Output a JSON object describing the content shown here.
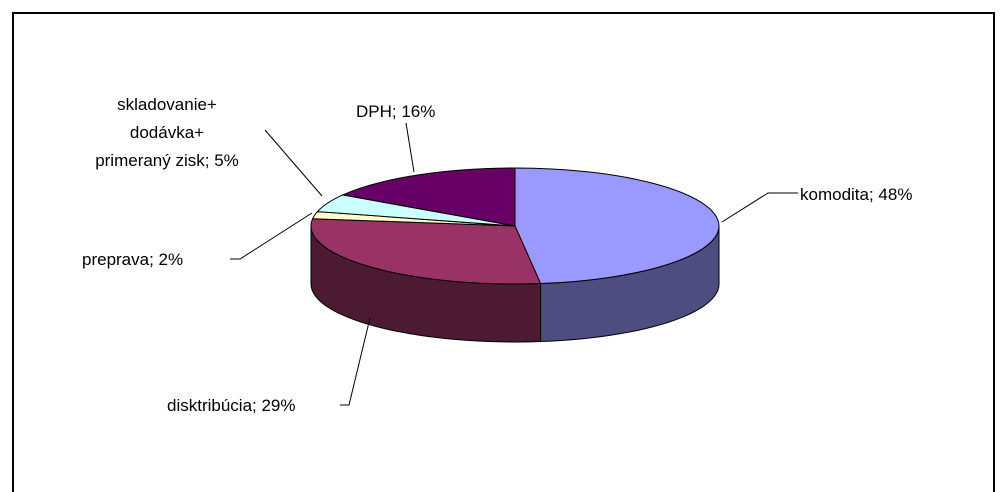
{
  "chart_data": {
    "type": "pie",
    "title": "",
    "three_d": true,
    "slices": [
      {
        "category": "komodita",
        "value": 48,
        "label": "komodita; 48%",
        "color": "#9999ff"
      },
      {
        "category": "disktribúcia",
        "value": 29,
        "label": "disktribúcia; 29%",
        "color": "#993366"
      },
      {
        "category": "preprava",
        "value": 2,
        "label": "preprava; 2%",
        "color": "#ffffcc"
      },
      {
        "category": "skladovanie+ dodávka+ primeraný zisk",
        "value": 5,
        "label_lines": [
          "skladovanie+",
          "dodávka+",
          "primeraný zisk; 5%"
        ],
        "color": "#ccffff"
      },
      {
        "category": "DPH",
        "value": 16,
        "label": "DPH; 16%",
        "color": "#660066"
      }
    ]
  }
}
